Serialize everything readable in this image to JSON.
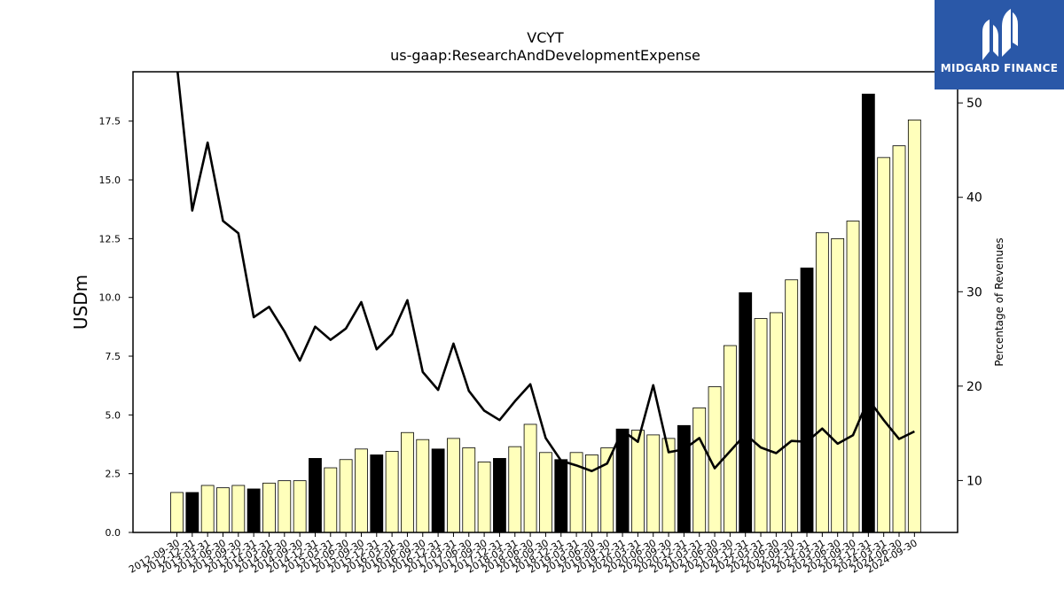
{
  "brand": {
    "name": "MIDGARD FINANCE",
    "color": "#2a58a8"
  },
  "chart_data": {
    "type": "bar",
    "title": "VCYT",
    "subtitle": "us-gaap:ResearchAndDevelopmentExpense",
    "ylabel": "USDm",
    "y2label": "Percentage of Revenues",
    "ylim": [
      0,
      19.6
    ],
    "y2lim": [
      4.5,
      53.3
    ],
    "yticks": [
      "0.0",
      "2.5",
      "5.0",
      "7.5",
      "10.0",
      "12.5",
      "15.0",
      "17.5"
    ],
    "y2ticks": [
      "10",
      "20",
      "30",
      "40",
      "50"
    ],
    "categories": [
      "2012-09-30",
      "2012-12-31",
      "2013-03-31",
      "2013-06-30",
      "2013-09-30",
      "2013-12-31",
      "2014-03-31",
      "2014-06-30",
      "2014-09-30",
      "2014-12-31",
      "2015-03-31",
      "2015-06-30",
      "2015-09-30",
      "2015-12-31",
      "2016-03-31",
      "2016-06-30",
      "2016-09-30",
      "2016-12-31",
      "2017-03-31",
      "2017-06-30",
      "2017-09-30",
      "2017-12-31",
      "2018-03-31",
      "2018-06-30",
      "2018-09-30",
      "2018-12-31",
      "2019-03-31",
      "2019-06-30",
      "2019-09-30",
      "2019-12-31",
      "2020-03-31",
      "2020-06-30",
      "2020-09-30",
      "2020-12-31",
      "2021-03-31",
      "2021-06-30",
      "2021-09-30",
      "2021-12-31",
      "2022-03-31",
      "2022-06-30",
      "2022-09-30",
      "2022-12-31",
      "2023-03-31",
      "2023-06-30",
      "2023-09-30",
      "2023-12-31",
      "2024-03-31",
      "2024-06-30",
      "2024-09-30"
    ],
    "series": [
      {
        "kind": "bar",
        "values": [
          1.7,
          1.7,
          2.0,
          1.9,
          2.0,
          1.85,
          2.1,
          2.2,
          2.2,
          3.15,
          2.75,
          3.1,
          3.55,
          3.3,
          3.45,
          4.25,
          3.95,
          3.55,
          4.0,
          3.6,
          3.0,
          3.15,
          3.65,
          4.6,
          3.4,
          3.1,
          3.4,
          3.3,
          3.6,
          4.4,
          4.35,
          4.15,
          4.0,
          4.55,
          5.3,
          6.2,
          7.95,
          10.2,
          9.1,
          9.35,
          10.75,
          11.25,
          12.75,
          12.5,
          13.25,
          18.65,
          15.95,
          16.45,
          17.55
        ],
        "highlight_indices": [
          1,
          5,
          9,
          13,
          17,
          21,
          25,
          29,
          33,
          37,
          41,
          45
        ],
        "color": "#ffffbb",
        "highlight_color": "#000000"
      },
      {
        "kind": "line",
        "axis": "right",
        "values": [
          54.0,
          38.6,
          45.8,
          37.5,
          36.2,
          27.3,
          28.4,
          25.8,
          22.7,
          26.3,
          24.9,
          26.1,
          28.9,
          23.9,
          25.5,
          29.1,
          21.5,
          19.6,
          24.5,
          19.5,
          17.4,
          16.4,
          18.4,
          20.2,
          14.5,
          12.1,
          11.6,
          11.0,
          11.8,
          15.3,
          14.1,
          20.1,
          13.0,
          13.3,
          14.5,
          11.3,
          13.1,
          14.9,
          13.5,
          12.9,
          14.2,
          14.1,
          15.5,
          13.9,
          14.8,
          18.6,
          16.4,
          14.4,
          15.2
        ],
        "color": "#000000"
      }
    ]
  }
}
